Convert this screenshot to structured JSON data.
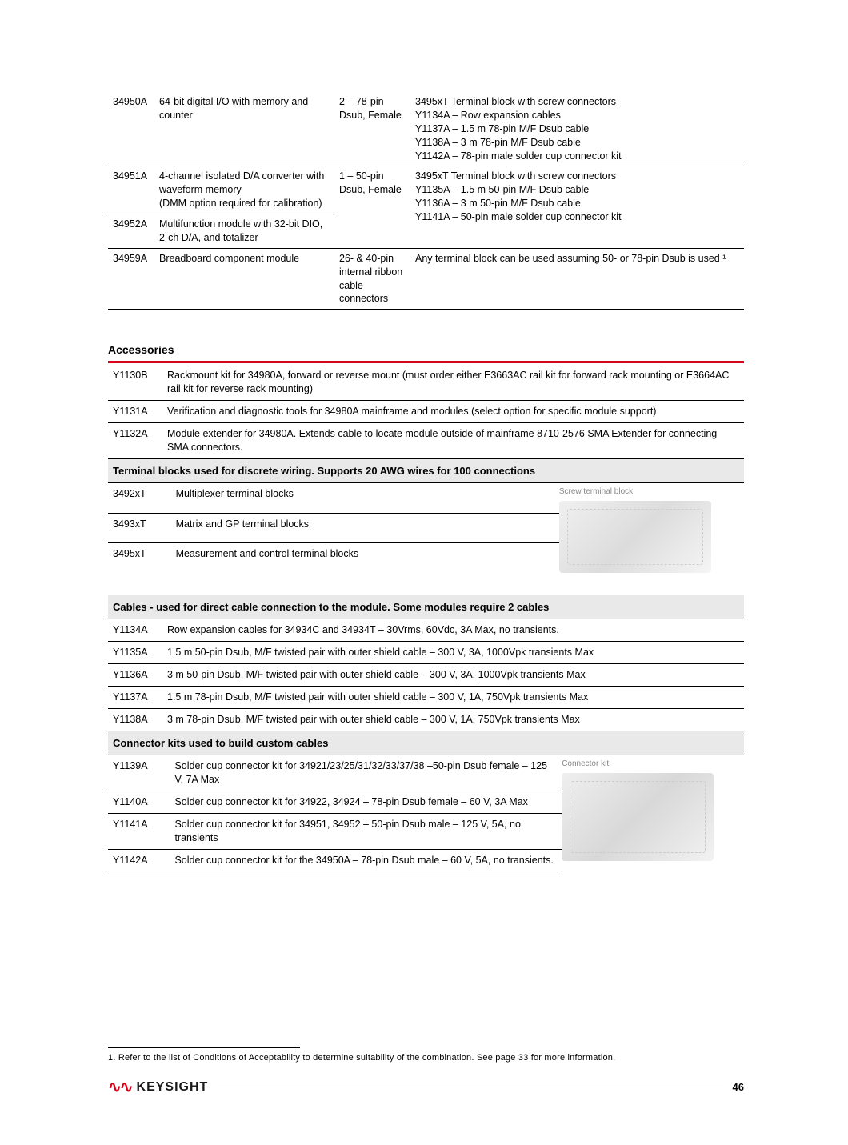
{
  "modules": {
    "rows": [
      {
        "model": "34950A",
        "desc": "64-bit digital I/O with memory and counter",
        "conn": "2 – 78-pin Dsub, Female",
        "acc": "3495xT Terminal block with screw connectors\nY1134A – Row expansion cables\nY1137A – 1.5 m 78-pin M/F Dsub cable\nY1138A – 3 m 78-pin M/F Dsub cable\nY1142A – 78-pin male solder cup connector kit"
      },
      {
        "model": "34951A",
        "desc": "4-channel isolated D/A converter with waveform memory\n(DMM option required for calibration)",
        "conn": "1 – 50-pin Dsub, Female",
        "acc": "3495xT Terminal block with screw connectors\nY1135A – 1.5 m 50-pin M/F Dsub cable\nY1136A – 3 m 50-pin M/F Dsub cable\nY1141A – 50-pin male solder cup connector kit"
      },
      {
        "model": "34952A",
        "desc": "Multifunction module with 32-bit DIO, 2-ch D/A, and totalizer",
        "conn": "",
        "acc": ""
      },
      {
        "model": "34959A",
        "desc": "Breadboard component module",
        "conn": "26- & 40-pin internal ribbon cable connectors",
        "acc": "Any terminal block can be used assuming 50- or 78-pin Dsub is used ¹"
      }
    ]
  },
  "accessories_title": "Accessories",
  "acc_general": [
    {
      "model": "Y1130B",
      "desc": "Rackmount kit for 34980A, forward or reverse mount (must order either E3663AC rail kit for forward rack mounting or E3664AC rail kit for reverse rack mounting)"
    },
    {
      "model": "Y1131A",
      "desc": "Verification and diagnostic tools for 34980A mainframe and modules (select option for specific module support)"
    },
    {
      "model": "Y1132A",
      "desc": "Module extender for 34980A. Extends cable to locate module outside of mainframe 8710-2576 SMA Extender for connecting SMA connectors."
    }
  ],
  "sub_terminal": "Terminal blocks used for discrete wiring. Supports 20 AWG wires for 100 connections",
  "terminal_rows": [
    {
      "model": "3492xT",
      "desc": "Multiplexer terminal blocks"
    },
    {
      "model": "3493xT",
      "desc": "Matrix and GP terminal blocks"
    },
    {
      "model": "3495xT",
      "desc": "Measurement and control terminal blocks"
    }
  ],
  "terminal_caption": "Screw terminal block",
  "sub_cables": "Cables - used for direct cable connection to the module. Some modules require 2 cables",
  "cable_rows": [
    {
      "model": "Y1134A",
      "desc": "Row expansion cables for 34934C and 34934T – 30Vrms, 60Vdc, 3A Max, no transients."
    },
    {
      "model": "Y1135A",
      "desc": "1.5 m 50-pin Dsub, M/F twisted pair with outer shield cable – 300 V, 3A, 1000Vpk transients Max"
    },
    {
      "model": "Y1136A",
      "desc": "3 m 50-pin Dsub, M/F twisted pair with outer shield cable – 300 V, 3A, 1000Vpk transients Max"
    },
    {
      "model": "Y1137A",
      "desc": "1.5 m 78-pin Dsub, M/F twisted pair with outer shield cable – 300 V, 1A, 750Vpk transients Max"
    },
    {
      "model": "Y1138A",
      "desc": "3 m 78-pin Dsub, M/F twisted pair with outer shield cable – 300 V, 1A, 750Vpk transients Max"
    }
  ],
  "sub_connkits": "Connector kits used to build custom cables",
  "connkit_rows": [
    {
      "model": "Y1139A",
      "desc": "Solder cup connector kit for 34921/23/25/31/32/33/37/38 –50-pin Dsub female – 125 V, 7A Max"
    },
    {
      "model": "Y1140A",
      "desc": "Solder cup connector kit for 34922, 34924 – 78-pin Dsub female – 60 V, 3A Max"
    },
    {
      "model": "Y1141A",
      "desc": "Solder cup connector kit for 34951, 34952 – 50-pin Dsub male – 125 V, 5A, no transients"
    },
    {
      "model": "Y1142A",
      "desc": "Solder cup connector kit for the 34950A – 78-pin Dsub male – 60 V, 5A, no transients."
    }
  ],
  "connkit_caption": "Connector kit",
  "footnote": "1. Refer to the list of Conditions of Acceptability to determine suitability of the combination. See page 33 for more information.",
  "logo_text": "KEYSIGHT",
  "page_number": "46"
}
